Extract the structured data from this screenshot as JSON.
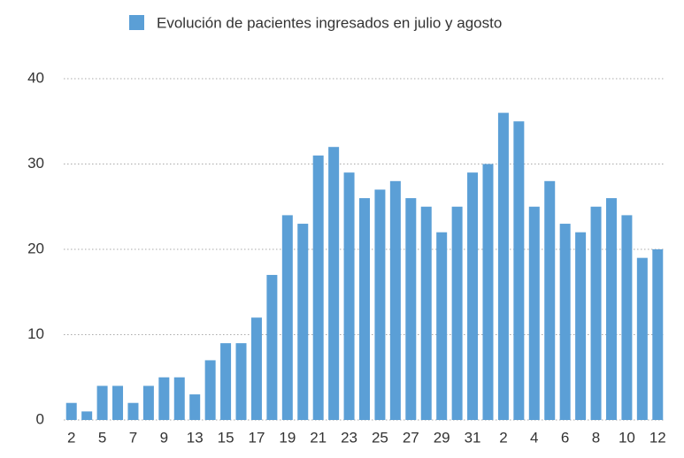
{
  "chart_data": {
    "type": "bar",
    "legend": "Evolución de pacientes ingresados en julio y agosto",
    "categories": [
      "2",
      null,
      "5",
      null,
      "7",
      null,
      "9",
      null,
      "13",
      null,
      "15",
      null,
      "17",
      null,
      "19",
      null,
      "21",
      null,
      "23",
      null,
      "25",
      null,
      "27",
      null,
      "29",
      null,
      "31",
      null,
      "2",
      null,
      "4",
      null,
      "6",
      null,
      "8",
      null,
      "10",
      null,
      "12"
    ],
    "values": [
      2,
      1,
      4,
      4,
      2,
      4,
      5,
      5,
      3,
      7,
      9,
      9,
      12,
      17,
      24,
      23,
      31,
      32,
      29,
      26,
      27,
      28,
      26,
      25,
      22,
      25,
      29,
      30,
      36,
      35,
      25,
      28,
      23,
      22,
      25,
      26,
      24,
      19,
      20
    ],
    "color": "#5b9fd6",
    "ylim": [
      0,
      40
    ],
    "yticks": [
      0,
      10,
      20,
      30,
      40
    ],
    "grid": true
  }
}
